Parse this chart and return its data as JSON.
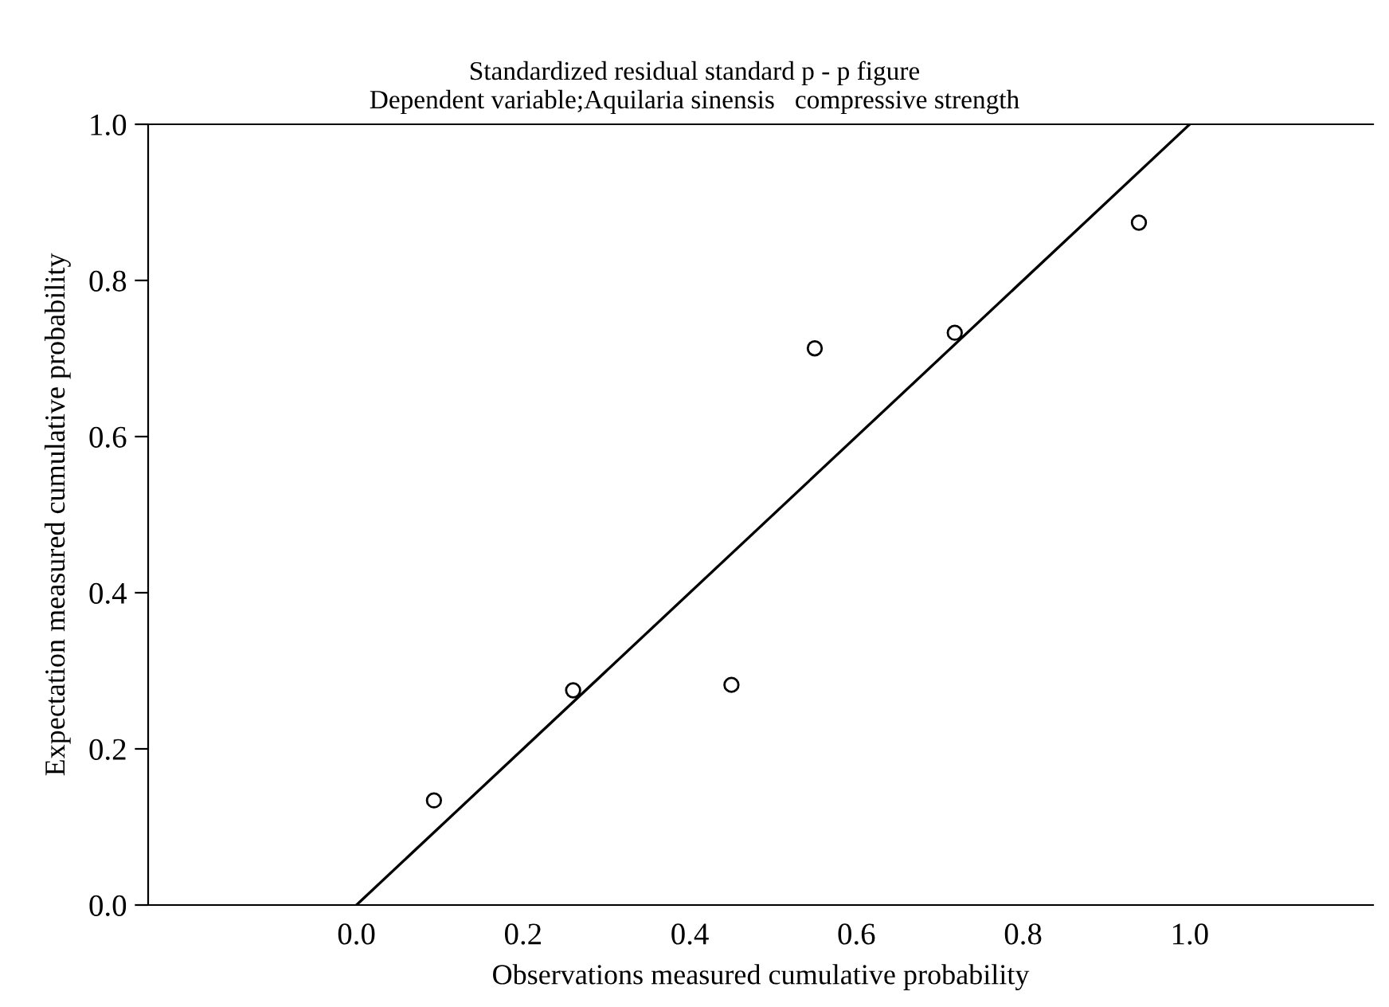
{
  "chart_data": {
    "type": "scatter",
    "title": "Standardized residual standard p - p figure",
    "subtitle": "Dependent variable;Aquilaria sinensis   compressive strength",
    "xlabel": "Observations measured cumulative probability",
    "ylabel": "Expectation measured cumulative probability",
    "series": [
      {
        "color": "#000000",
        "marker": "circle",
        "x": [
          0.093,
          0.26,
          0.45,
          0.55,
          0.718,
          0.939
        ],
        "values": [
          0.134,
          0.275,
          0.282,
          0.713,
          0.733,
          0.874
        ]
      },
      {
        "type": "line",
        "color": "#000000",
        "x": [
          0.0,
          1.0
        ],
        "values": [
          0.0,
          1.0
        ]
      }
    ],
    "xlim": [
      -0.25,
      1.22
    ],
    "ylim": [
      0.0,
      1.0
    ],
    "xticks": [
      {
        "value": 0,
        "label": "0.0"
      },
      0.2,
      0.4,
      0.6,
      0.8,
      {
        "value": 1,
        "label": "1.0"
      }
    ],
    "yticks": [
      {
        "value": 0,
        "label": "0.0"
      },
      0.2,
      0.4,
      0.6,
      0.8,
      {
        "value": 1,
        "label": "1.0"
      }
    ],
    "grid": false
  }
}
